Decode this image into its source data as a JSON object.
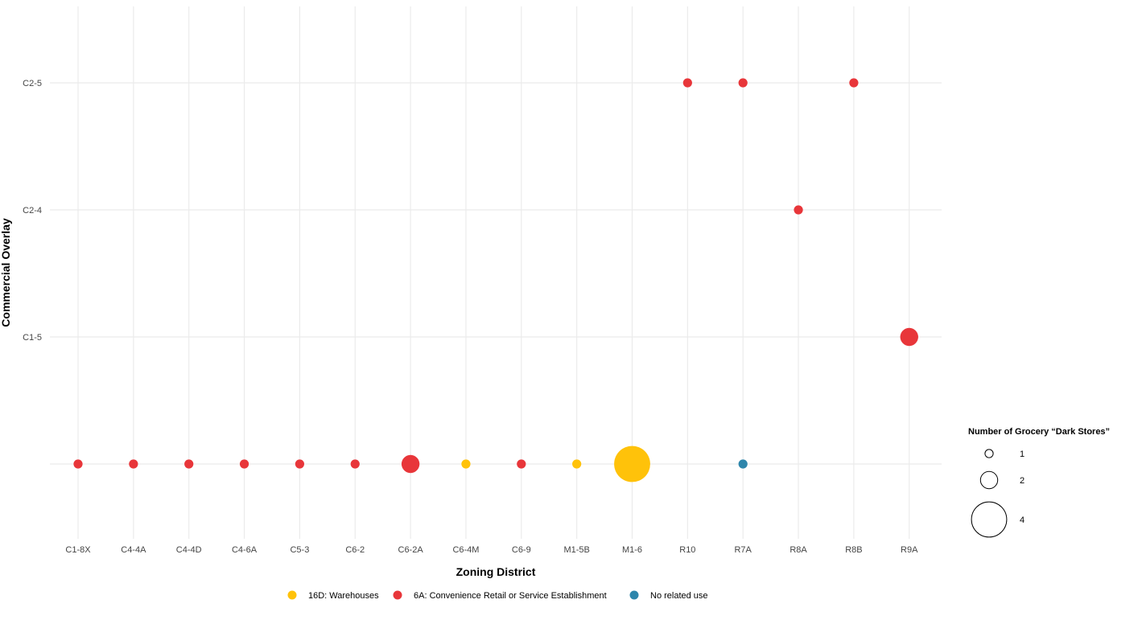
{
  "chart_data": {
    "type": "scatter",
    "title": "",
    "xlabel": "Zoning District",
    "ylabel": "Commercial Overlay",
    "x_categories": [
      "C1-8X",
      "C4-4A",
      "C4-4D",
      "C4-6A",
      "C5-3",
      "C6-2",
      "C6-2A",
      "C6-4M",
      "C6-9",
      "M1-5B",
      "M1-6",
      "R10",
      "R7A",
      "R8A",
      "R8B",
      "R9A"
    ],
    "y_categories": [
      "",
      "C1-5",
      "C2-4",
      "C2-5"
    ],
    "grid": true,
    "color_legend": {
      "placement": "bottom",
      "entries": [
        {
          "label": "16D: Warehouses",
          "color": "#FFC20A"
        },
        {
          "label": "6A: Convenience Retail or Service Establishment",
          "color": "#E8363A"
        },
        {
          "label": "No related use",
          "color": "#2E86AB"
        }
      ]
    },
    "size_legend": {
      "title": "Number of Grocery “Dark Stores”",
      "placement": "right",
      "values": [
        1,
        2,
        4
      ],
      "labels": [
        "1",
        "2",
        "4"
      ]
    },
    "points": [
      {
        "x": "C1-8X",
        "y": "",
        "use": "6A: Convenience Retail or Service Establishment",
        "count": 1
      },
      {
        "x": "C4-4A",
        "y": "",
        "use": "6A: Convenience Retail or Service Establishment",
        "count": 1
      },
      {
        "x": "C4-4D",
        "y": "",
        "use": "6A: Convenience Retail or Service Establishment",
        "count": 1
      },
      {
        "x": "C4-6A",
        "y": "",
        "use": "6A: Convenience Retail or Service Establishment",
        "count": 1
      },
      {
        "x": "C5-3",
        "y": "",
        "use": "6A: Convenience Retail or Service Establishment",
        "count": 1
      },
      {
        "x": "C6-2",
        "y": "",
        "use": "6A: Convenience Retail or Service Establishment",
        "count": 1
      },
      {
        "x": "C6-2A",
        "y": "",
        "use": "6A: Convenience Retail or Service Establishment",
        "count": 2
      },
      {
        "x": "C6-4M",
        "y": "",
        "use": "16D: Warehouses",
        "count": 1
      },
      {
        "x": "C6-9",
        "y": "",
        "use": "6A: Convenience Retail or Service Establishment",
        "count": 1
      },
      {
        "x": "M1-5B",
        "y": "",
        "use": "16D: Warehouses",
        "count": 1
      },
      {
        "x": "M1-6",
        "y": "",
        "use": "16D: Warehouses",
        "count": 4
      },
      {
        "x": "R10",
        "y": "C2-5",
        "use": "6A: Convenience Retail or Service Establishment",
        "count": 1
      },
      {
        "x": "R7A",
        "y": "C2-5",
        "use": "6A: Convenience Retail or Service Establishment",
        "count": 1
      },
      {
        "x": "R7A",
        "y": "",
        "use": "No related use",
        "count": 1
      },
      {
        "x": "R8A",
        "y": "C2-4",
        "use": "6A: Convenience Retail or Service Establishment",
        "count": 1
      },
      {
        "x": "R8B",
        "y": "C2-5",
        "use": "6A: Convenience Retail or Service Establishment",
        "count": 1
      },
      {
        "x": "R9A",
        "y": "C1-5",
        "use": "6A: Convenience Retail or Service Establishment",
        "count": 2
      }
    ]
  }
}
